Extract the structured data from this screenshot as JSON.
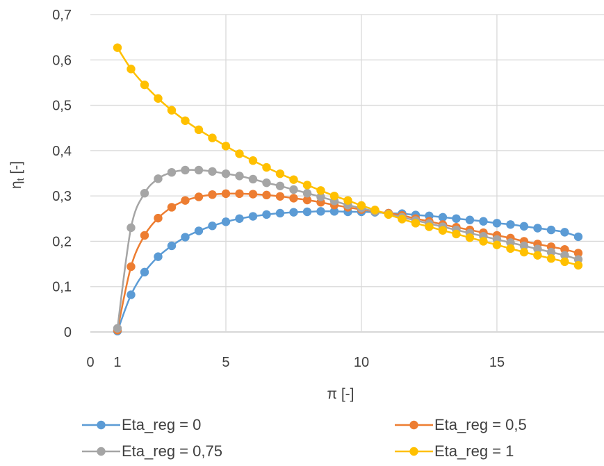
{
  "chart_data": {
    "type": "line",
    "title": "",
    "xlabel": "π [-]",
    "ylabel": "ηt [-]",
    "ylabel_main": "η",
    "ylabel_sub": "t",
    "ylabel_rest": " [-]",
    "xlim": [
      0,
      18
    ],
    "ylim": [
      0,
      0.7
    ],
    "x_ticks": [
      "0",
      "1",
      "5",
      "10",
      "15"
    ],
    "y_ticks": [
      "0",
      "0,1",
      "0,2",
      "0,3",
      "0,4",
      "0,5",
      "0,6",
      "0,7"
    ],
    "grid": true,
    "legend_position": "bottom",
    "x": [
      1,
      1.5,
      2,
      2.5,
      3,
      3.5,
      4,
      4.5,
      5,
      5.5,
      6,
      6.5,
      7,
      7.5,
      8,
      8.5,
      9,
      9.5,
      10,
      10.5,
      11,
      11.5,
      12,
      12.5,
      13,
      13.5,
      14,
      14.5,
      15,
      15.5,
      16,
      16.5,
      17,
      17.5,
      18
    ],
    "series": [
      {
        "name": "Eta_reg = 0",
        "color": "#5B9BD5",
        "values": [
          0.002,
          0.082,
          0.132,
          0.166,
          0.19,
          0.209,
          0.223,
          0.234,
          0.243,
          0.25,
          0.255,
          0.259,
          0.262,
          0.264,
          0.265,
          0.266,
          0.266,
          0.265,
          0.265,
          0.264,
          0.262,
          0.261,
          0.258,
          0.256,
          0.253,
          0.25,
          0.247,
          0.244,
          0.24,
          0.237,
          0.233,
          0.229,
          0.225,
          0.22,
          0.21
        ]
      },
      {
        "name": "Eta_reg = 0,5",
        "color": "#ED7D31",
        "values": [
          0.004,
          0.144,
          0.213,
          0.251,
          0.275,
          0.29,
          0.298,
          0.303,
          0.305,
          0.305,
          0.304,
          0.302,
          0.299,
          0.295,
          0.291,
          0.286,
          0.28,
          0.275,
          0.27,
          0.266,
          0.262,
          0.257,
          0.25,
          0.244,
          0.237,
          0.231,
          0.225,
          0.219,
          0.213,
          0.207,
          0.2,
          0.194,
          0.188,
          0.182,
          0.174
        ]
      },
      {
        "name": "Eta_reg = 0,75",
        "color": "#A5A5A5",
        "values": [
          0.008,
          0.23,
          0.306,
          0.338,
          0.352,
          0.357,
          0.357,
          0.354,
          0.349,
          0.344,
          0.337,
          0.329,
          0.322,
          0.314,
          0.306,
          0.298,
          0.289,
          0.28,
          0.273,
          0.266,
          0.26,
          0.253,
          0.246,
          0.239,
          0.232,
          0.225,
          0.218,
          0.211,
          0.204,
          0.197,
          0.19,
          0.183,
          0.176,
          0.169,
          0.16
        ]
      },
      {
        "name": "Eta_reg = 1",
        "color": "#FFC000",
        "values": [
          0.627,
          0.58,
          0.545,
          0.515,
          0.489,
          0.466,
          0.446,
          0.428,
          0.41,
          0.393,
          0.378,
          0.363,
          0.349,
          0.336,
          0.324,
          0.312,
          0.3,
          0.29,
          0.279,
          0.269,
          0.259,
          0.249,
          0.24,
          0.232,
          0.224,
          0.216,
          0.208,
          0.2,
          0.192,
          0.184,
          0.176,
          0.169,
          0.162,
          0.155,
          0.147
        ]
      }
    ]
  }
}
